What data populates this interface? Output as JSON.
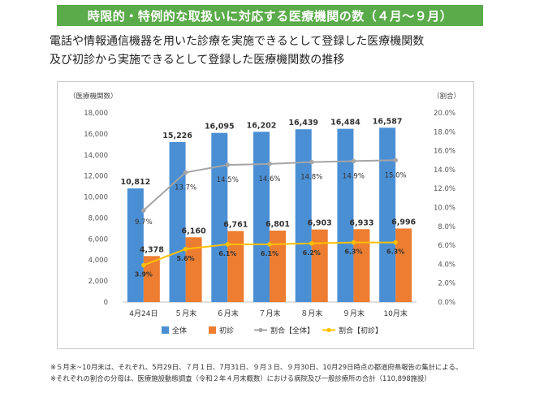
{
  "header": {
    "banner": "時限的・特例的な取扱いに対応する医療機関の数（４月～９月）",
    "subtitle_line1": "電話や情報通信機器を用いた診療を実施できるとして登録した医療機関数",
    "subtitle_line2": "及び初診から実施できるとして登録した医療機関数の推移"
  },
  "chart_data": {
    "type": "bar",
    "categories": [
      "4月24日",
      "５月末",
      "６月末",
      "７月末",
      "８月末",
      "９月末",
      "10月末"
    ],
    "y_left_label": "（医療機関数）",
    "y_right_label": "（割合）",
    "y_left_ticks": [
      "0",
      "2,000",
      "4,000",
      "6,000",
      "8,000",
      "10,000",
      "12,000",
      "14,000",
      "16,000",
      "18,000"
    ],
    "y_right_ticks": [
      "0.0%",
      "2.0%",
      "4.0%",
      "6.0%",
      "8.0%",
      "10.0%",
      "12.0%",
      "14.0%",
      "16.0%",
      "18.0%",
      "20.0%"
    ],
    "ylim_left": [
      0,
      18000
    ],
    "ylim_right": [
      0,
      20
    ],
    "series": [
      {
        "name": "全体",
        "kind": "bar",
        "axis": "left",
        "color": "#4a8fd4",
        "values": [
          10812,
          15226,
          16095,
          16202,
          16439,
          16484,
          16587
        ],
        "labels": [
          "10,812",
          "15,226",
          "16,095",
          "16,202",
          "16,439",
          "16,484",
          "16,587"
        ]
      },
      {
        "name": "初診",
        "kind": "bar",
        "axis": "left",
        "color": "#ed7d31",
        "values": [
          4378,
          6160,
          6761,
          6801,
          6903,
          6933,
          6996
        ],
        "labels": [
          "4,378",
          "6,160",
          "6,761",
          "6,801",
          "6,903",
          "6,933",
          "6,996"
        ]
      },
      {
        "name": "割合【全体】",
        "kind": "line",
        "axis": "right",
        "color": "#a5a5a5",
        "values": [
          9.7,
          13.7,
          14.5,
          14.6,
          14.8,
          14.9,
          15.0
        ],
        "labels": [
          "9.7%",
          "13.7%",
          "14.5%",
          "14.6%",
          "14.8%",
          "14.9%",
          "15.0%"
        ]
      },
      {
        "name": "割合【初診】",
        "kind": "line",
        "axis": "right",
        "color": "#ffc000",
        "values": [
          3.9,
          5.6,
          6.1,
          6.1,
          6.2,
          6.3,
          6.3
        ],
        "labels": [
          "3.9%",
          "5.6%",
          "6.1%",
          "6.1%",
          "6.2%",
          "6.3%",
          "6.3%"
        ]
      }
    ],
    "grid": false,
    "legend_position": "bottom"
  },
  "footnotes": {
    "line1": "※５月末~10月末は、それぞれ、5月29日、７月１日、7月31日、９月３日、９月30日、10月29日時点の都道府県報告の集計による。",
    "line2": "※それぞれの割合の分母は、医療施設動態調査（令和２年４月末概数）における病院及び一般診療所の合計（110,898施設）"
  }
}
